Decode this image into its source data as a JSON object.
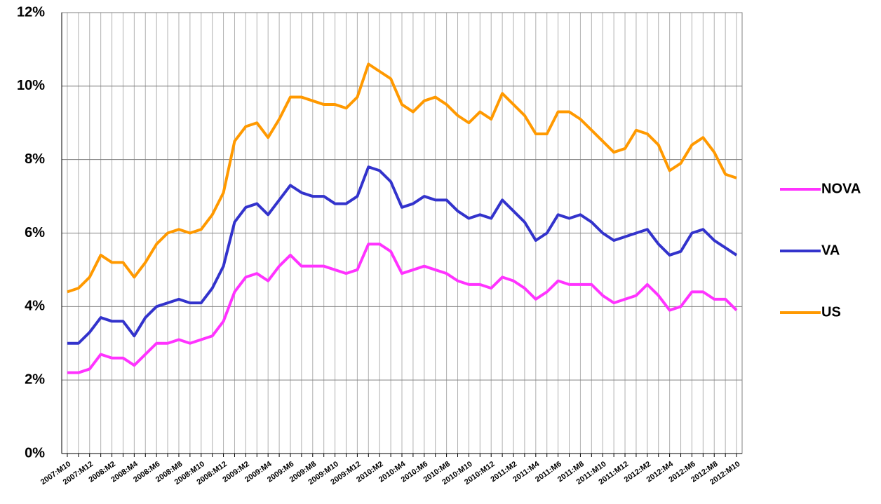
{
  "chart_data": {
    "type": "line",
    "categories": [
      "2007:M10",
      null,
      "2007:M12",
      null,
      "2008:M2",
      null,
      "2008:M4",
      null,
      "2008:M6",
      null,
      "2008:M8",
      null,
      "2008:M10",
      null,
      "2008:M12",
      null,
      "2009:M2",
      null,
      "2009:M4",
      null,
      "2009:M6",
      null,
      "2009:M8",
      null,
      "2009:M10",
      null,
      "2009:M12",
      null,
      "2010:M2",
      null,
      "2010:M4",
      null,
      "2010:M6",
      null,
      "2010:M8",
      null,
      "2010:M10",
      null,
      "2010:M12",
      null,
      "2011:M2",
      null,
      "2011:M4",
      null,
      "2011:M6",
      null,
      "2011:M8",
      null,
      "2011:M10",
      null,
      "2011:M12",
      null,
      "2012:M2",
      null,
      "2012:M4",
      null,
      "2012:M6",
      null,
      "2012:M8",
      null,
      "2012:M10"
    ],
    "series": [
      {
        "name": "NOVA",
        "color": "#ff33ff",
        "values": [
          2.2,
          2.2,
          2.3,
          2.7,
          2.6,
          2.6,
          2.4,
          2.7,
          3.0,
          3.0,
          3.1,
          3.0,
          3.1,
          3.2,
          3.6,
          4.4,
          4.8,
          4.9,
          4.7,
          5.1,
          5.4,
          5.1,
          5.1,
          5.1,
          5.0,
          4.9,
          5.0,
          5.7,
          5.7,
          5.5,
          4.9,
          5.0,
          5.1,
          5.0,
          4.9,
          4.7,
          4.6,
          4.6,
          4.5,
          4.8,
          4.7,
          4.5,
          4.2,
          4.4,
          4.7,
          4.6,
          4.6,
          4.6,
          4.3,
          4.1,
          4.2,
          4.3,
          4.6,
          4.3,
          3.9,
          4.0,
          4.4,
          4.4,
          4.2,
          4.2,
          3.9
        ]
      },
      {
        "name": "VA",
        "color": "#3333cc",
        "values": [
          3.0,
          3.0,
          3.3,
          3.7,
          3.6,
          3.6,
          3.2,
          3.7,
          4.0,
          4.1,
          4.2,
          4.1,
          4.1,
          4.5,
          5.1,
          6.3,
          6.7,
          6.8,
          6.5,
          6.9,
          7.3,
          7.1,
          7.0,
          7.0,
          6.8,
          6.8,
          7.0,
          7.8,
          7.7,
          7.4,
          6.7,
          6.8,
          7.0,
          6.9,
          6.9,
          6.6,
          6.4,
          6.5,
          6.4,
          6.9,
          6.6,
          6.3,
          5.8,
          6.0,
          6.5,
          6.4,
          6.5,
          6.3,
          6.0,
          5.8,
          5.9,
          6.0,
          6.1,
          5.7,
          5.4,
          5.5,
          6.0,
          6.1,
          5.8,
          5.6,
          5.4
        ]
      },
      {
        "name": "US",
        "color": "#ff9900",
        "values": [
          4.4,
          4.5,
          4.8,
          5.4,
          5.2,
          5.2,
          4.8,
          5.2,
          5.7,
          6.0,
          6.1,
          6.0,
          6.1,
          6.5,
          7.1,
          8.5,
          8.9,
          9.0,
          8.6,
          9.1,
          9.7,
          9.7,
          9.6,
          9.5,
          9.5,
          9.4,
          9.7,
          10.6,
          10.4,
          10.2,
          9.5,
          9.3,
          9.6,
          9.7,
          9.5,
          9.2,
          9.0,
          9.3,
          9.1,
          9.8,
          9.5,
          9.2,
          8.7,
          8.7,
          9.3,
          9.3,
          9.1,
          8.8,
          8.5,
          8.2,
          8.3,
          8.8,
          8.7,
          8.4,
          7.7,
          7.9,
          8.4,
          8.6,
          8.2,
          7.6,
          7.5
        ]
      }
    ],
    "ylim": [
      0,
      12
    ],
    "yticks": [
      {
        "value": 0,
        "label": "0%"
      },
      {
        "value": 2,
        "label": "2%"
      },
      {
        "value": 4,
        "label": "4%"
      },
      {
        "value": 6,
        "label": "6%"
      },
      {
        "value": 8,
        "label": "8%"
      },
      {
        "value": 10,
        "label": "10%"
      },
      {
        "value": 12,
        "label": "12%"
      }
    ],
    "grid": true,
    "legend": "right"
  }
}
